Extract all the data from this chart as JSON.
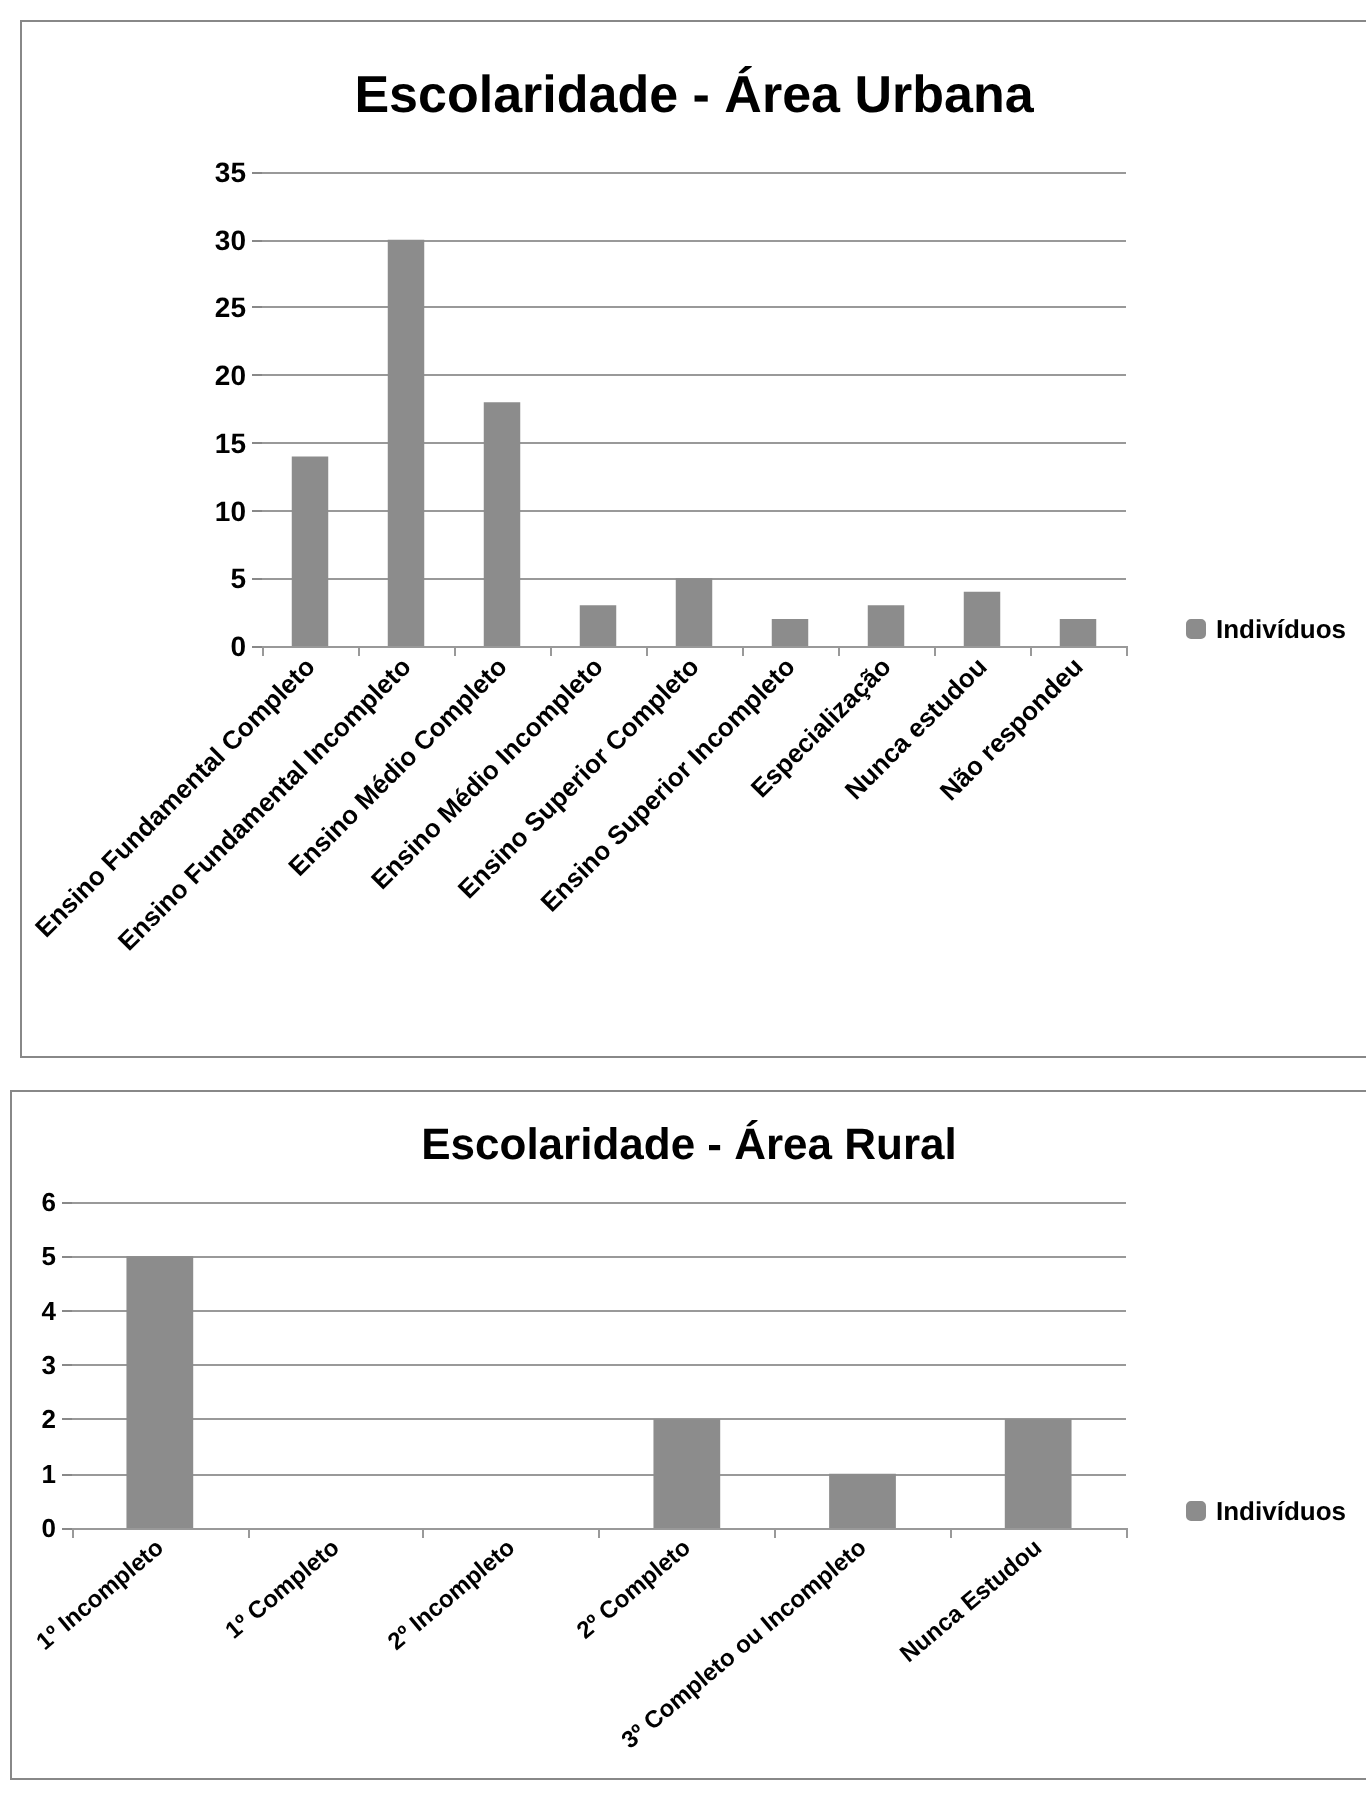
{
  "chart_data": [
    {
      "type": "bar",
      "title": "Escolaridade - Área Urbana",
      "categories": [
        "Ensino Fundamental Completo",
        "Ensino Fundamental Incompleto",
        "Ensino Médio Completo",
        "Ensino Médio Incompleto",
        "Ensino Superior Completo",
        "Ensino Superior Incompleto",
        "Especialização",
        "Nunca estudou",
        "Não respondeu"
      ],
      "series": [
        {
          "name": "Indivíduos",
          "color": "#8c8c8c",
          "values": [
            14,
            30,
            18,
            3,
            5,
            2,
            3,
            4,
            2
          ]
        }
      ],
      "ylim": [
        0,
        35
      ],
      "yticks": [
        0,
        5,
        10,
        15,
        20,
        25,
        30,
        35
      ],
      "grid": "y",
      "legend": "right"
    },
    {
      "type": "bar",
      "title": "Escolaridade - Área Rural",
      "categories": [
        "1º Incompleto",
        "1º Completo",
        "2º Incompleto",
        "2º Completo",
        "3º Completo ou Incompleto",
        "Nunca Estudou"
      ],
      "series": [
        {
          "name": "Indivíduos",
          "color": "#8c8c8c",
          "values": [
            5,
            0,
            0,
            2,
            1,
            2
          ]
        }
      ],
      "ylim": [
        0,
        6
      ],
      "yticks": [
        0,
        1,
        2,
        3,
        4,
        5,
        6
      ],
      "grid": "y",
      "legend": "right"
    }
  ]
}
